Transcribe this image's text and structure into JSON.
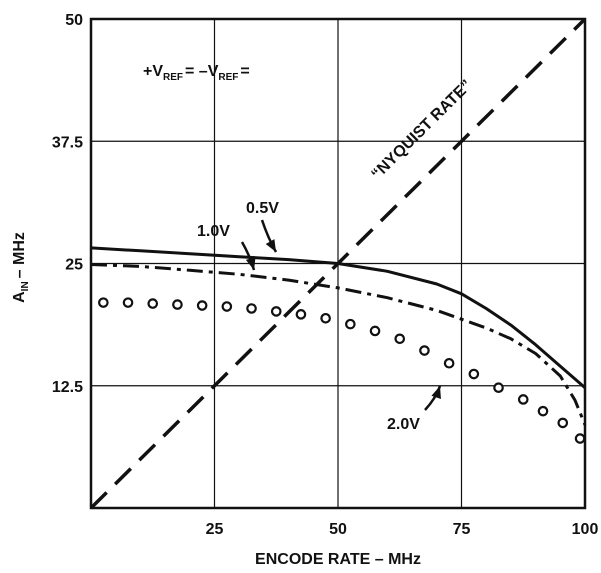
{
  "chart_data": {
    "type": "line",
    "title": "",
    "xlabel": "ENCODE RATE – MHz",
    "ylabel": "– MHz",
    "ylabel_symbol": "A",
    "ylabel_subscript": "IN",
    "xlim": [
      0,
      100
    ],
    "ylim": [
      0,
      50
    ],
    "xticks": [
      "25",
      "50",
      "75",
      "100"
    ],
    "yticks": [
      "12.5",
      "25",
      "37.5",
      "50"
    ],
    "grid": true,
    "annotation_vref": {
      "plus": "+V",
      "plus_sub": "REF",
      "middle": "= –V",
      "minus_sub": "REF",
      "end": "="
    },
    "nyquist_label": "“NYQUIST RATE”",
    "series": [
      {
        "name": "0.5V",
        "style": "solid",
        "points": [
          [
            0,
            26.6
          ],
          [
            10,
            26.3
          ],
          [
            20,
            26.0
          ],
          [
            30,
            25.7
          ],
          [
            40,
            25.4
          ],
          [
            50,
            25.0
          ],
          [
            60,
            24.2
          ],
          [
            70,
            22.9
          ],
          [
            75,
            21.9
          ],
          [
            80,
            20.4
          ],
          [
            85,
            18.7
          ],
          [
            90,
            16.7
          ],
          [
            95,
            14.5
          ],
          [
            100,
            12.3
          ]
        ]
      },
      {
        "name": "1.0V",
        "style": "dashdot",
        "points": [
          [
            0,
            24.9
          ],
          [
            10,
            24.7
          ],
          [
            20,
            24.3
          ],
          [
            30,
            23.9
          ],
          [
            40,
            23.3
          ],
          [
            50,
            22.5
          ],
          [
            60,
            21.5
          ],
          [
            70,
            20.2
          ],
          [
            80,
            18.4
          ],
          [
            85,
            17.3
          ],
          [
            90,
            15.8
          ],
          [
            95,
            13.5
          ],
          [
            98,
            11.0
          ],
          [
            100,
            8.5
          ]
        ]
      },
      {
        "name": "2.0V",
        "style": "dots",
        "points": [
          [
            2.5,
            21.0
          ],
          [
            7.5,
            21.0
          ],
          [
            12.5,
            20.9
          ],
          [
            17.5,
            20.8
          ],
          [
            22.5,
            20.7
          ],
          [
            27.5,
            20.6
          ],
          [
            32.5,
            20.4
          ],
          [
            37.5,
            20.1
          ],
          [
            42.5,
            19.8
          ],
          [
            47.5,
            19.4
          ],
          [
            52.5,
            18.8
          ],
          [
            57.5,
            18.1
          ],
          [
            62.5,
            17.3
          ],
          [
            67.5,
            16.1
          ],
          [
            72.5,
            14.8
          ],
          [
            77.5,
            13.7
          ],
          [
            82.5,
            12.3
          ],
          [
            87.5,
            11.1
          ],
          [
            91.5,
            9.9
          ],
          [
            95.5,
            8.7
          ],
          [
            99,
            7.1
          ]
        ]
      },
      {
        "name": "NYQUIST RATE",
        "style": "dashed",
        "points": [
          [
            0,
            0
          ],
          [
            100,
            50
          ]
        ]
      }
    ]
  }
}
